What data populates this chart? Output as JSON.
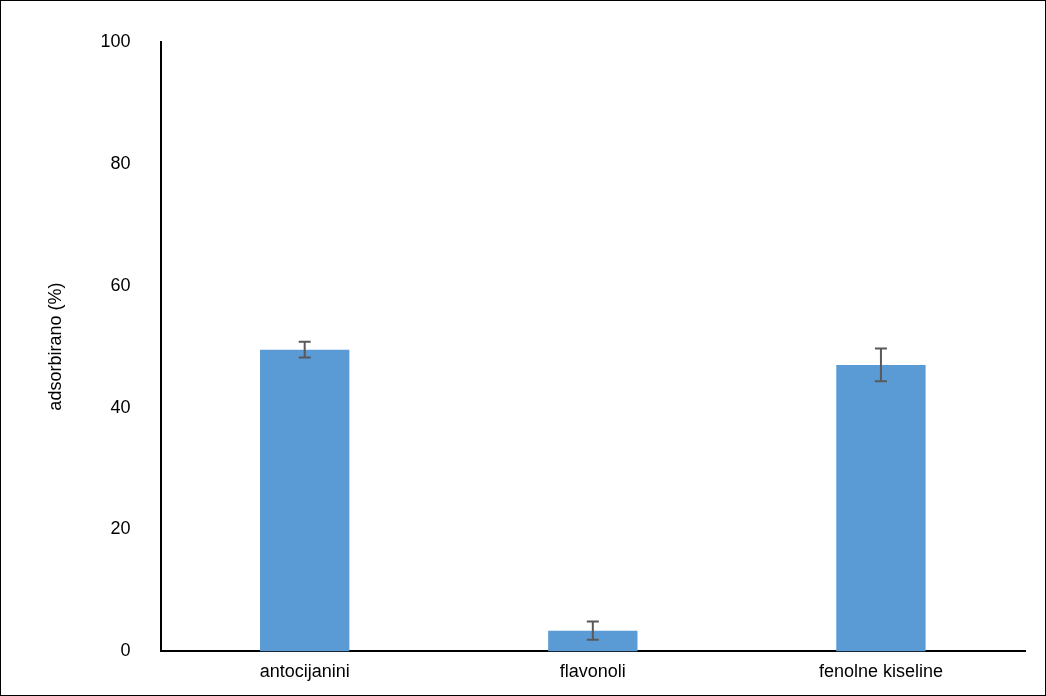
{
  "chart_data": {
    "type": "bar",
    "ylabel": "adsorbirano (%)",
    "categories": [
      "antocijanini",
      "flavonoli",
      "fenolne kiseline"
    ],
    "values": [
      49.5,
      3.4,
      47.0
    ],
    "errors": [
      1.3,
      1.5,
      2.7
    ],
    "color": "#5b9bd5",
    "ylim": [
      0,
      100
    ],
    "yticks": [
      0,
      20,
      40,
      60,
      80,
      100
    ],
    "grid": false
  }
}
